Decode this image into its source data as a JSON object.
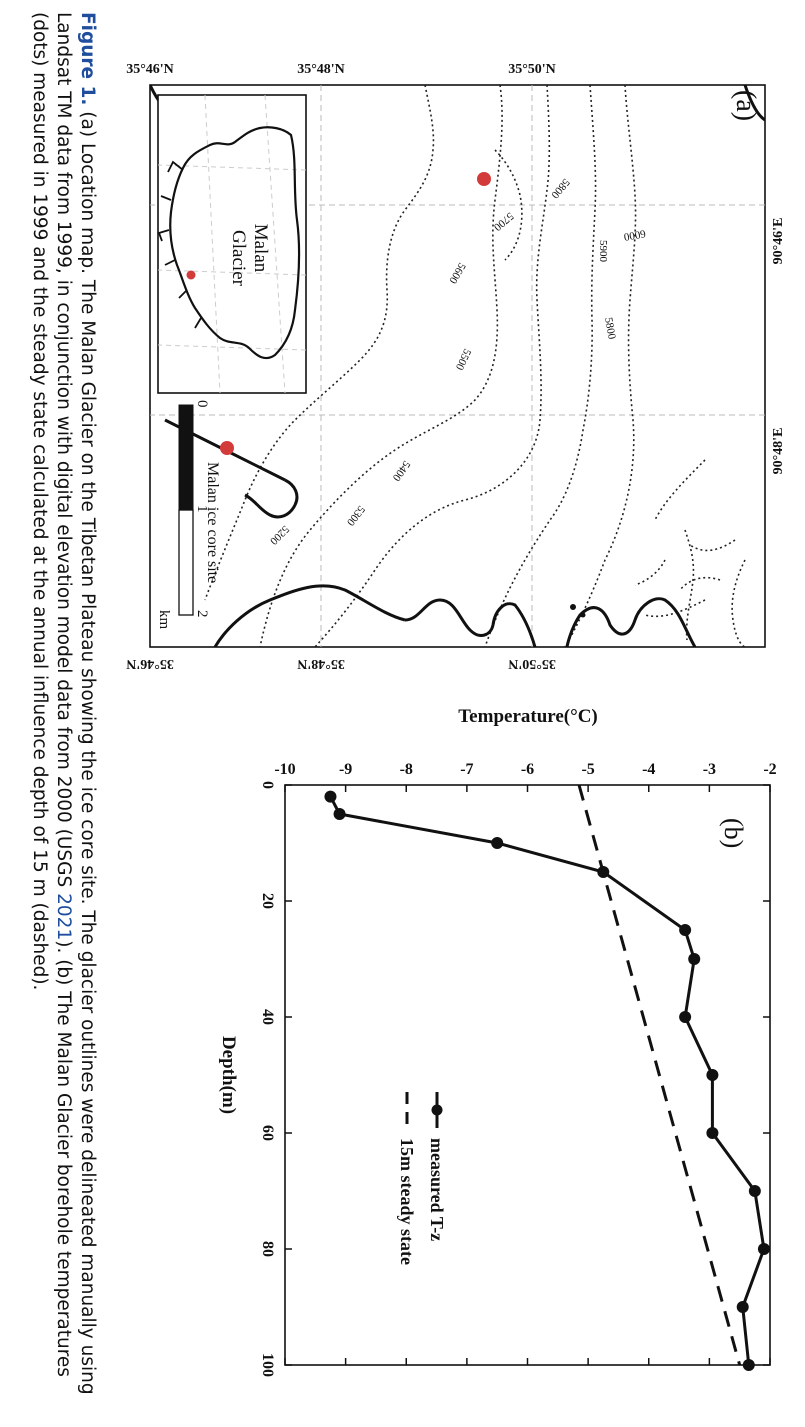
{
  "map": {
    "panel_label": "(a)",
    "lon_ticks": [
      "90°46'E",
      "90°48'E"
    ],
    "lat_ticks": [
      "35°50'N",
      "35°48'N",
      "35°46'N"
    ],
    "contour_labels": [
      "6000",
      "5900",
      "5800",
      "5700",
      "5600",
      "5800",
      "5500",
      "5400",
      "5300",
      "5200"
    ],
    "inset_label_line1": "Malan",
    "inset_label_line2": "Glacier",
    "legend_site": "Malan ice core site",
    "scale_labels": [
      "0",
      "1",
      "2"
    ],
    "scale_unit": "km",
    "site_color": "#d33b3b"
  },
  "chart_data": {
    "type": "line",
    "panel_label": "(b)",
    "xlabel": "Depth(m)",
    "ylabel": "Temperature(°C)",
    "xlim": [
      0,
      100
    ],
    "ylim": [
      -10,
      -2
    ],
    "x_ticks": [
      0,
      20,
      40,
      60,
      80,
      100
    ],
    "y_ticks": [
      -10,
      -9,
      -8,
      -7,
      -6,
      -5,
      -4,
      -3,
      -2
    ],
    "series": [
      {
        "name": "measured T-z",
        "style": "solid-with-dots",
        "x": [
          2,
          5,
          10,
          15,
          25,
          30,
          40,
          50,
          60,
          70,
          80,
          90,
          100
        ],
        "y": [
          -9.25,
          -9.1,
          -6.5,
          -4.75,
          -3.4,
          -3.25,
          -3.4,
          -2.95,
          -2.95,
          -2.25,
          -2.1,
          -2.45,
          -2.35
        ]
      },
      {
        "name": "15m steady state",
        "style": "dashed",
        "x": [
          0,
          100
        ],
        "y": [
          -5.15,
          -2.5
        ]
      }
    ]
  },
  "caption": {
    "figure_label": "Figure 1.",
    "text_before_ref": " (a) Location map. The Malan Glacier on the Tibetan Plateau showing the ice core site. The glacier outlines were delineated manually using Landsat TM data from 1999, in conjunction with digital elevation model data from 2000 (USGS ",
    "ref_year": "2021",
    "text_after_ref": "). (b) The Malan Glacier borehole temperatures (dots) measured in 1999 and the steady state calculated at the annual influence depth of 15 m (dashed)."
  }
}
